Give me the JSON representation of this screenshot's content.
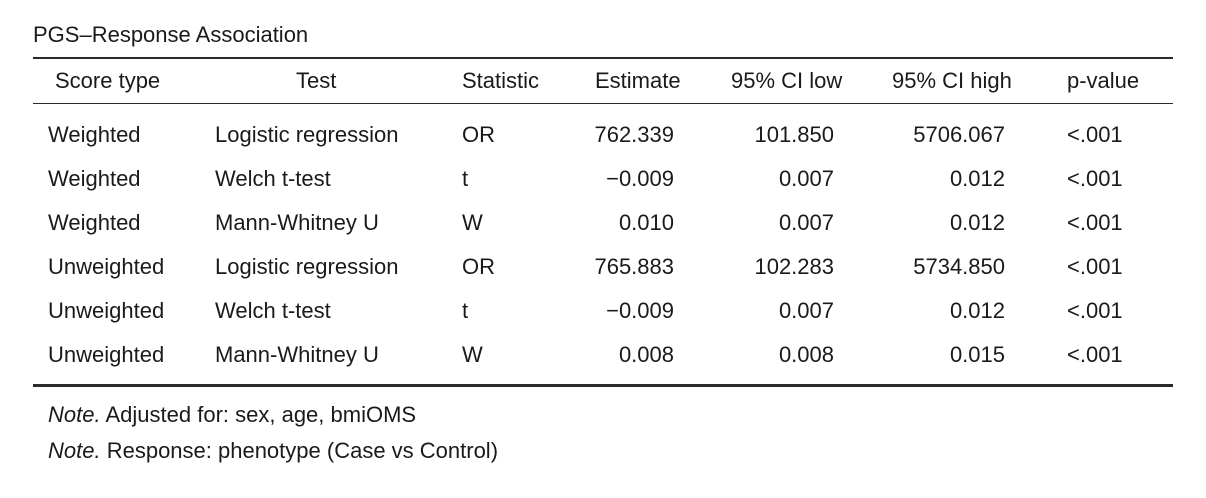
{
  "title": "PGS–Response Association",
  "headers": {
    "score_type": "Score type",
    "test": "Test",
    "statistic": "Statistic",
    "estimate": "Estimate",
    "ci_low": "95% CI low",
    "ci_high": "95% CI high",
    "p_value": "p-value"
  },
  "rows": [
    {
      "score_type": "Weighted",
      "test": "Logistic regression",
      "statistic": "OR",
      "estimate": "762.339",
      "ci_low": "101.850",
      "ci_high": "5706.067",
      "p_value": "<.001"
    },
    {
      "score_type": "Weighted",
      "test": "Welch t-test",
      "statistic": "t",
      "estimate": "−0.009",
      "ci_low": "0.007",
      "ci_high": "0.012",
      "p_value": "<.001"
    },
    {
      "score_type": "Weighted",
      "test": "Mann-Whitney U",
      "statistic": "W",
      "estimate": "0.010",
      "ci_low": "0.007",
      "ci_high": "0.012",
      "p_value": "<.001"
    },
    {
      "score_type": "Unweighted",
      "test": "Logistic regression",
      "statistic": "OR",
      "estimate": "765.883",
      "ci_low": "102.283",
      "ci_high": "5734.850",
      "p_value": "<.001"
    },
    {
      "score_type": "Unweighted",
      "test": "Welch t-test",
      "statistic": "t",
      "estimate": "−0.009",
      "ci_low": "0.007",
      "ci_high": "0.012",
      "p_value": "<.001"
    },
    {
      "score_type": "Unweighted",
      "test": "Mann-Whitney U",
      "statistic": "W",
      "estimate": "0.008",
      "ci_low": "0.008",
      "ci_high": "0.015",
      "p_value": "<.001"
    }
  ],
  "notes": [
    {
      "label": "Note.",
      "text": " Adjusted for: sex, age, bmiOMS"
    },
    {
      "label": "Note.",
      "text": " Response: phenotype (Case vs Control)"
    }
  ]
}
